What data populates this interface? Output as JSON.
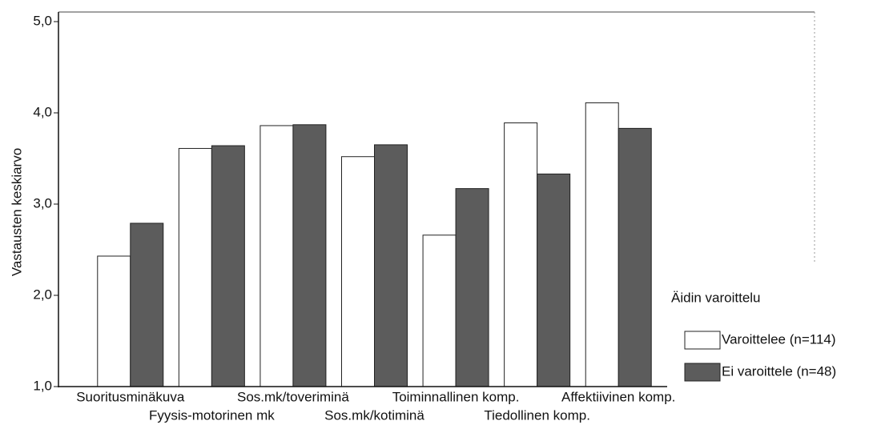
{
  "chart_data": {
    "type": "bar",
    "y_label": "Vastausten keskiarvo",
    "categories": [
      "Suoritusminäkuva",
      "Fyysis-motorinen mk",
      "Sos.mk/toveriminä",
      "Sos.mk/kotiminä",
      "Toiminnallinen komp.",
      "Tiedollinen komp.",
      "Affektiivinen komp."
    ],
    "series": [
      {
        "name": "Varoittelee (n=114)",
        "color": "#ffffff",
        "values": [
          2.43,
          3.61,
          3.86,
          3.52,
          2.66,
          3.89,
          4.11
        ]
      },
      {
        "name": "Ei varoittele (n=48)",
        "color": "#5c5c5c",
        "values": [
          2.79,
          3.64,
          3.87,
          3.65,
          3.17,
          3.33,
          3.83
        ]
      }
    ],
    "legend_title": "Äidin varoittelu",
    "legend_position": "right",
    "ylim": [
      1,
      5
    ],
    "yticks": [
      {
        "value": 1,
        "label": "1,0"
      },
      {
        "value": 2,
        "label": "2,0"
      },
      {
        "value": 3,
        "label": "3,0"
      },
      {
        "value": 4,
        "label": "4,0"
      },
      {
        "value": 5,
        "label": "5,0"
      }
    ]
  }
}
